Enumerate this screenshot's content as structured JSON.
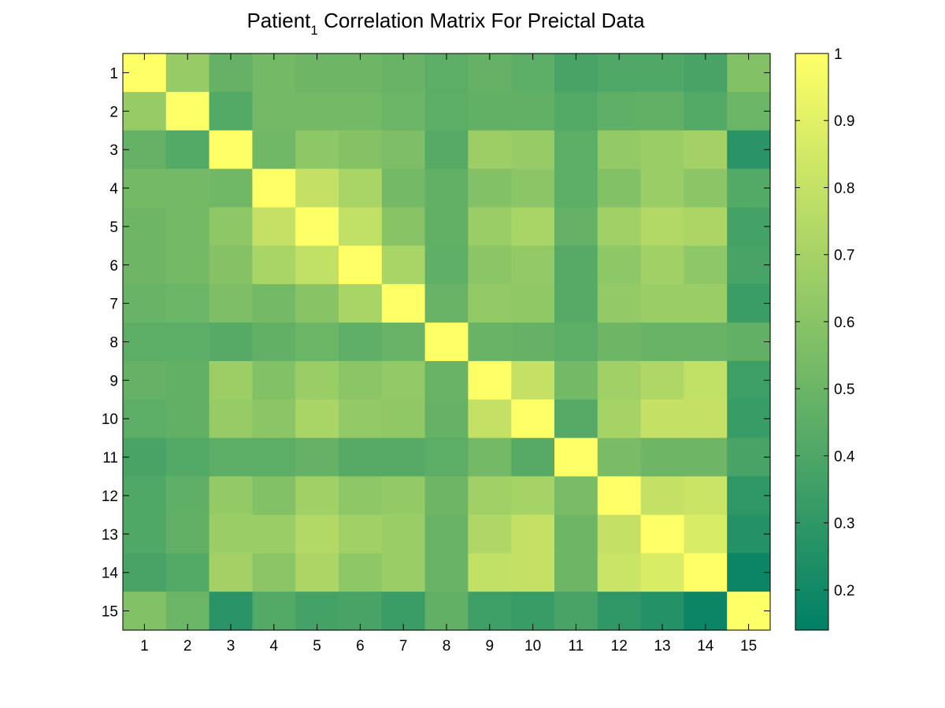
{
  "chart_data": {
    "type": "heatmap",
    "title": {
      "main": "Patient",
      "subscript": "1",
      "rest": " Correlation Matrix For Preictal Data"
    },
    "x_labels": [
      "1",
      "2",
      "3",
      "4",
      "5",
      "6",
      "7",
      "8",
      "9",
      "10",
      "11",
      "12",
      "13",
      "14",
      "15"
    ],
    "y_labels": [
      "1",
      "2",
      "3",
      "4",
      "5",
      "6",
      "7",
      "8",
      "9",
      "10",
      "11",
      "12",
      "13",
      "14",
      "15"
    ],
    "values": [
      [
        1.0,
        0.65,
        0.48,
        0.53,
        0.51,
        0.51,
        0.49,
        0.45,
        0.48,
        0.45,
        0.38,
        0.41,
        0.41,
        0.38,
        0.58
      ],
      [
        0.65,
        1.0,
        0.42,
        0.53,
        0.53,
        0.53,
        0.5,
        0.45,
        0.47,
        0.47,
        0.42,
        0.46,
        0.47,
        0.42,
        0.5
      ],
      [
        0.48,
        0.42,
        1.0,
        0.52,
        0.62,
        0.59,
        0.56,
        0.43,
        0.67,
        0.65,
        0.45,
        0.64,
        0.66,
        0.69,
        0.28
      ],
      [
        0.53,
        0.53,
        0.52,
        1.0,
        0.8,
        0.71,
        0.53,
        0.47,
        0.58,
        0.61,
        0.45,
        0.58,
        0.66,
        0.61,
        0.42
      ],
      [
        0.51,
        0.53,
        0.62,
        0.8,
        1.0,
        0.79,
        0.6,
        0.47,
        0.66,
        0.71,
        0.48,
        0.68,
        0.74,
        0.72,
        0.37
      ],
      [
        0.51,
        0.53,
        0.59,
        0.71,
        0.79,
        1.0,
        0.71,
        0.46,
        0.61,
        0.64,
        0.43,
        0.62,
        0.68,
        0.62,
        0.38
      ],
      [
        0.49,
        0.5,
        0.56,
        0.53,
        0.6,
        0.71,
        1.0,
        0.49,
        0.64,
        0.63,
        0.43,
        0.64,
        0.66,
        0.66,
        0.34
      ],
      [
        0.45,
        0.45,
        0.43,
        0.47,
        0.5,
        0.46,
        0.49,
        1.0,
        0.49,
        0.48,
        0.45,
        0.51,
        0.49,
        0.49,
        0.47
      ],
      [
        0.48,
        0.47,
        0.67,
        0.58,
        0.66,
        0.61,
        0.64,
        0.49,
        1.0,
        0.8,
        0.53,
        0.68,
        0.73,
        0.79,
        0.35
      ],
      [
        0.45,
        0.47,
        0.65,
        0.61,
        0.71,
        0.64,
        0.63,
        0.48,
        0.8,
        1.0,
        0.43,
        0.7,
        0.8,
        0.8,
        0.33
      ],
      [
        0.38,
        0.42,
        0.45,
        0.45,
        0.48,
        0.43,
        0.43,
        0.45,
        0.53,
        0.43,
        1.0,
        0.55,
        0.51,
        0.51,
        0.38
      ],
      [
        0.41,
        0.46,
        0.64,
        0.58,
        0.68,
        0.62,
        0.64,
        0.51,
        0.68,
        0.7,
        0.55,
        1.0,
        0.8,
        0.82,
        0.3
      ],
      [
        0.41,
        0.47,
        0.66,
        0.66,
        0.74,
        0.68,
        0.66,
        0.49,
        0.73,
        0.8,
        0.51,
        0.8,
        1.0,
        0.87,
        0.26
      ],
      [
        0.38,
        0.42,
        0.69,
        0.61,
        0.72,
        0.62,
        0.66,
        0.49,
        0.79,
        0.8,
        0.51,
        0.82,
        0.87,
        1.0,
        0.18
      ],
      [
        0.58,
        0.5,
        0.28,
        0.42,
        0.37,
        0.38,
        0.34,
        0.47,
        0.35,
        0.33,
        0.38,
        0.3,
        0.26,
        0.18,
        1.0
      ]
    ],
    "colorbar": {
      "min": 0.14,
      "max": 1.0,
      "ticks": [
        0.2,
        0.3,
        0.4,
        0.5,
        0.6,
        0.7,
        0.8,
        0.9,
        1
      ],
      "tick_labels": [
        "0.2",
        "0.3",
        "0.4",
        "0.5",
        "0.6",
        "0.7",
        "0.8",
        "0.9",
        "1"
      ],
      "colormap": "summer",
      "color_low": "#008066",
      "color_high": "#ffff66"
    },
    "grid": false
  }
}
